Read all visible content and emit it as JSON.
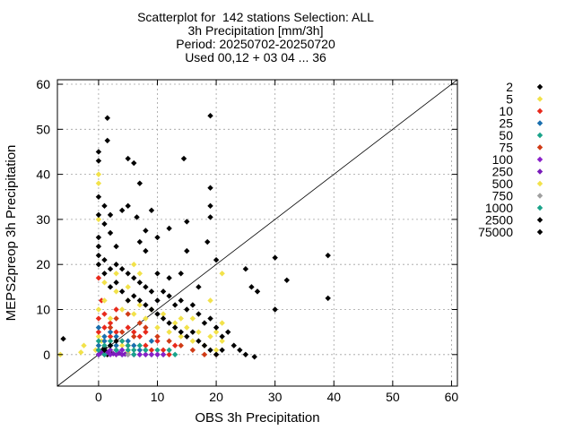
{
  "title_lines": [
    "Scatterplot for  142 stations Selection: ALL",
    "3h Precipitation [mm/3h]",
    "Period: 20250702-20250720",
    "Used 00,12 + 03 04 ... 36"
  ],
  "chart_data": {
    "type": "scatter",
    "xlabel": "OBS 3h Precipitation",
    "ylabel": "MEPS2preop 3h Precipitation",
    "xlim": [
      -7,
      61
    ],
    "ylim": [
      -7,
      61
    ],
    "xticks": [
      0,
      10,
      20,
      30,
      40,
      50,
      60
    ],
    "yticks": [
      0,
      10,
      20,
      30,
      40,
      50,
      60
    ],
    "grid": true,
    "diagonal": true,
    "legend_position": "right",
    "series": [
      {
        "name": "2",
        "color": "#000000",
        "points": [
          [
            0,
            0
          ],
          [
            0.5,
            0.8
          ],
          [
            1,
            1.5
          ],
          [
            1.5,
            0
          ],
          [
            2,
            0.5
          ],
          [
            0.3,
            0.3
          ],
          [
            1.2,
            0.2
          ],
          [
            0.8,
            1
          ]
        ]
      },
      {
        "name": "5",
        "color": "#f2e24a",
        "points": [
          [
            -6.5,
            0
          ],
          [
            -2.5,
            2
          ],
          [
            -3,
            0.5
          ],
          [
            0,
            2
          ],
          [
            0.5,
            3
          ],
          [
            1,
            2
          ],
          [
            2,
            1
          ],
          [
            3,
            0
          ],
          [
            4,
            2
          ],
          [
            5,
            0.5
          ],
          [
            0,
            4
          ],
          [
            -0.5,
            1
          ]
        ]
      },
      {
        "name": "10",
        "color": "#e8291c",
        "points": [
          [
            0,
            5
          ],
          [
            1,
            6
          ],
          [
            2,
            4
          ],
          [
            3,
            5
          ],
          [
            4,
            3
          ],
          [
            5,
            2
          ],
          [
            6,
            5
          ],
          [
            7,
            4
          ],
          [
            8,
            2
          ],
          [
            9,
            1
          ],
          [
            10,
            3
          ],
          [
            11,
            1
          ],
          [
            12,
            0
          ],
          [
            13,
            2
          ],
          [
            0,
            8
          ],
          [
            2,
            7
          ],
          [
            1,
            9
          ],
          [
            0.5,
            12
          ],
          [
            0,
            17
          ],
          [
            3,
            10
          ],
          [
            5,
            6
          ],
          [
            8,
            5
          ]
        ]
      },
      {
        "name": "25",
        "color": "#1a6fae",
        "points": [
          [
            0,
            2
          ],
          [
            1,
            3
          ],
          [
            2,
            2
          ],
          [
            3,
            4
          ],
          [
            4,
            1
          ],
          [
            5,
            3
          ],
          [
            6,
            2
          ],
          [
            7,
            1
          ],
          [
            8,
            0
          ],
          [
            9,
            3
          ],
          [
            10,
            0
          ],
          [
            0,
            6
          ],
          [
            1,
            4
          ],
          [
            2,
            5
          ],
          [
            3,
            2
          ],
          [
            6,
            0
          ]
        ]
      },
      {
        "name": "50",
        "color": "#1aa38a",
        "points": [
          [
            0,
            0
          ],
          [
            1,
            1
          ],
          [
            2,
            3
          ],
          [
            3,
            1
          ],
          [
            4,
            0
          ],
          [
            5,
            1
          ],
          [
            6,
            1
          ],
          [
            7,
            0
          ],
          [
            8,
            1
          ],
          [
            9,
            0
          ],
          [
            10,
            1
          ],
          [
            11,
            0
          ],
          [
            12,
            1
          ],
          [
            13,
            0
          ],
          [
            0,
            3
          ],
          [
            1,
            2
          ]
        ]
      },
      {
        "name": "75",
        "color": "#d03b16",
        "points": [
          [
            2,
            6
          ],
          [
            4,
            5
          ],
          [
            6,
            4
          ],
          [
            8,
            6
          ],
          [
            10,
            4
          ],
          [
            12,
            3
          ],
          [
            14,
            2
          ],
          [
            16,
            1
          ],
          [
            18,
            0
          ],
          [
            20,
            0
          ],
          [
            3,
            8
          ],
          [
            5,
            9
          ],
          [
            7,
            7
          ]
        ]
      },
      {
        "name": "100",
        "color": "#8a1fc9",
        "points": [
          [
            0,
            0
          ],
          [
            1,
            0
          ],
          [
            2,
            0
          ],
          [
            3,
            0
          ],
          [
            4,
            0
          ],
          [
            5,
            0
          ],
          [
            6,
            0
          ],
          [
            7,
            0
          ],
          [
            8,
            0
          ],
          [
            9,
            0
          ],
          [
            10,
            0
          ],
          [
            11,
            0
          ],
          [
            0,
            1
          ],
          [
            2,
            1
          ],
          [
            4,
            1
          ]
        ]
      },
      {
        "name": "250",
        "color": "#7a1cba",
        "points": [
          [
            0.5,
            0.5
          ],
          [
            1.5,
            0.5
          ],
          [
            2.5,
            0.2
          ],
          [
            3.5,
            0.3
          ],
          [
            4.5,
            0.1
          ]
        ]
      },
      {
        "name": "500",
        "color": "#f2e24a",
        "points": [
          [
            0,
            10
          ],
          [
            1,
            12
          ],
          [
            2,
            8
          ],
          [
            3,
            14
          ],
          [
            4,
            10
          ],
          [
            5,
            12
          ],
          [
            6,
            9
          ],
          [
            7,
            11
          ],
          [
            8,
            8
          ],
          [
            9,
            10
          ],
          [
            10,
            6
          ],
          [
            11,
            9
          ],
          [
            12,
            5
          ],
          [
            13,
            7
          ],
          [
            14,
            4
          ],
          [
            15,
            6
          ],
          [
            16,
            3
          ],
          [
            17,
            5
          ],
          [
            18,
            2
          ],
          [
            19,
            4
          ],
          [
            20,
            1
          ],
          [
            21,
            3
          ],
          [
            6,
            20
          ],
          [
            7,
            18
          ],
          [
            5,
            15
          ],
          [
            21,
            18
          ],
          [
            19,
            12
          ],
          [
            16,
            8
          ],
          [
            14,
            8
          ],
          [
            0,
            40
          ],
          [
            0,
            38
          ],
          [
            0,
            30
          ],
          [
            1,
            16
          ],
          [
            3,
            18
          ],
          [
            20,
            5
          ],
          [
            21,
            7
          ]
        ]
      },
      {
        "name": "750",
        "color": "#a0a0a0",
        "points": [
          [
            1,
            0
          ],
          [
            3,
            1
          ],
          [
            5,
            0
          ]
        ]
      },
      {
        "name": "1000",
        "color": "#1aa38a",
        "points": [
          [
            0,
            1
          ],
          [
            1,
            0
          ],
          [
            2,
            2
          ],
          [
            3,
            1
          ],
          [
            4,
            3
          ],
          [
            5,
            2
          ],
          [
            6,
            0
          ],
          [
            7,
            2
          ],
          [
            8,
            1
          ]
        ]
      },
      {
        "name": "2500",
        "color": "#000000",
        "points": [
          [
            1.5,
            52.5
          ],
          [
            1.5,
            47.5
          ],
          [
            5,
            43.5
          ],
          [
            6,
            42.5
          ],
          [
            7,
            38
          ],
          [
            6.5,
            30.5
          ],
          [
            8,
            27.5
          ],
          [
            7,
            25
          ],
          [
            8,
            23
          ],
          [
            0,
            45
          ],
          [
            0,
            43
          ],
          [
            0,
            35
          ],
          [
            0,
            31
          ],
          [
            0,
            26
          ],
          [
            0,
            24
          ],
          [
            1,
            33
          ],
          [
            1,
            29
          ],
          [
            2,
            27
          ],
          [
            3,
            24
          ],
          [
            2,
            31
          ],
          [
            4,
            32
          ],
          [
            5,
            33
          ],
          [
            9,
            32
          ],
          [
            10,
            26
          ],
          [
            12,
            28
          ],
          [
            15,
            29.5
          ],
          [
            15,
            23
          ],
          [
            19,
            53
          ],
          [
            19,
            37
          ],
          [
            19,
            33
          ],
          [
            19,
            30.5
          ],
          [
            18.5,
            25
          ],
          [
            14.5,
            43.5
          ],
          [
            20,
            21
          ],
          [
            25,
            19
          ],
          [
            26,
            15
          ],
          [
            27,
            14
          ],
          [
            30,
            21.5
          ],
          [
            32,
            16.5
          ],
          [
            30,
            10
          ],
          [
            26.5,
            -0.5
          ],
          [
            39,
            22
          ],
          [
            39,
            12.5
          ],
          [
            -6,
            3.5
          ],
          [
            17,
            15
          ],
          [
            10,
            18
          ],
          [
            12,
            17
          ],
          [
            14,
            18
          ],
          [
            7,
            16
          ],
          [
            8,
            15
          ],
          [
            9,
            14
          ],
          [
            10,
            12
          ],
          [
            11,
            14
          ],
          [
            12,
            13
          ],
          [
            13,
            11
          ],
          [
            14,
            12
          ],
          [
            15,
            10
          ],
          [
            16,
            11
          ],
          [
            17,
            9
          ],
          [
            18,
            7
          ],
          [
            19,
            8
          ],
          [
            20,
            6
          ],
          [
            21,
            4
          ],
          [
            22,
            5
          ],
          [
            23,
            2
          ],
          [
            24,
            1
          ],
          [
            25,
            0
          ],
          [
            16,
            5
          ],
          [
            17,
            3
          ],
          [
            18,
            2
          ],
          [
            19,
            1
          ],
          [
            20,
            0
          ],
          [
            21,
            1
          ],
          [
            3,
            20
          ],
          [
            4,
            19
          ],
          [
            5,
            18
          ],
          [
            6,
            17
          ],
          [
            2,
            19
          ],
          [
            1,
            18
          ],
          [
            0,
            20
          ],
          [
            0,
            22
          ],
          [
            1,
            21
          ],
          [
            2,
            15
          ],
          [
            3,
            16
          ],
          [
            4,
            14
          ],
          [
            5,
            12
          ],
          [
            6,
            13
          ],
          [
            7,
            12
          ],
          [
            8,
            11
          ],
          [
            9,
            10
          ],
          [
            10,
            9
          ],
          [
            11,
            8
          ],
          [
            12,
            7
          ],
          [
            13,
            6
          ],
          [
            14,
            5
          ],
          [
            15,
            4
          ]
        ]
      },
      {
        "name": "75000",
        "color": "#000000",
        "points": [
          [
            1,
            1
          ],
          [
            2,
            2
          ],
          [
            3,
            3
          ]
        ]
      }
    ]
  }
}
